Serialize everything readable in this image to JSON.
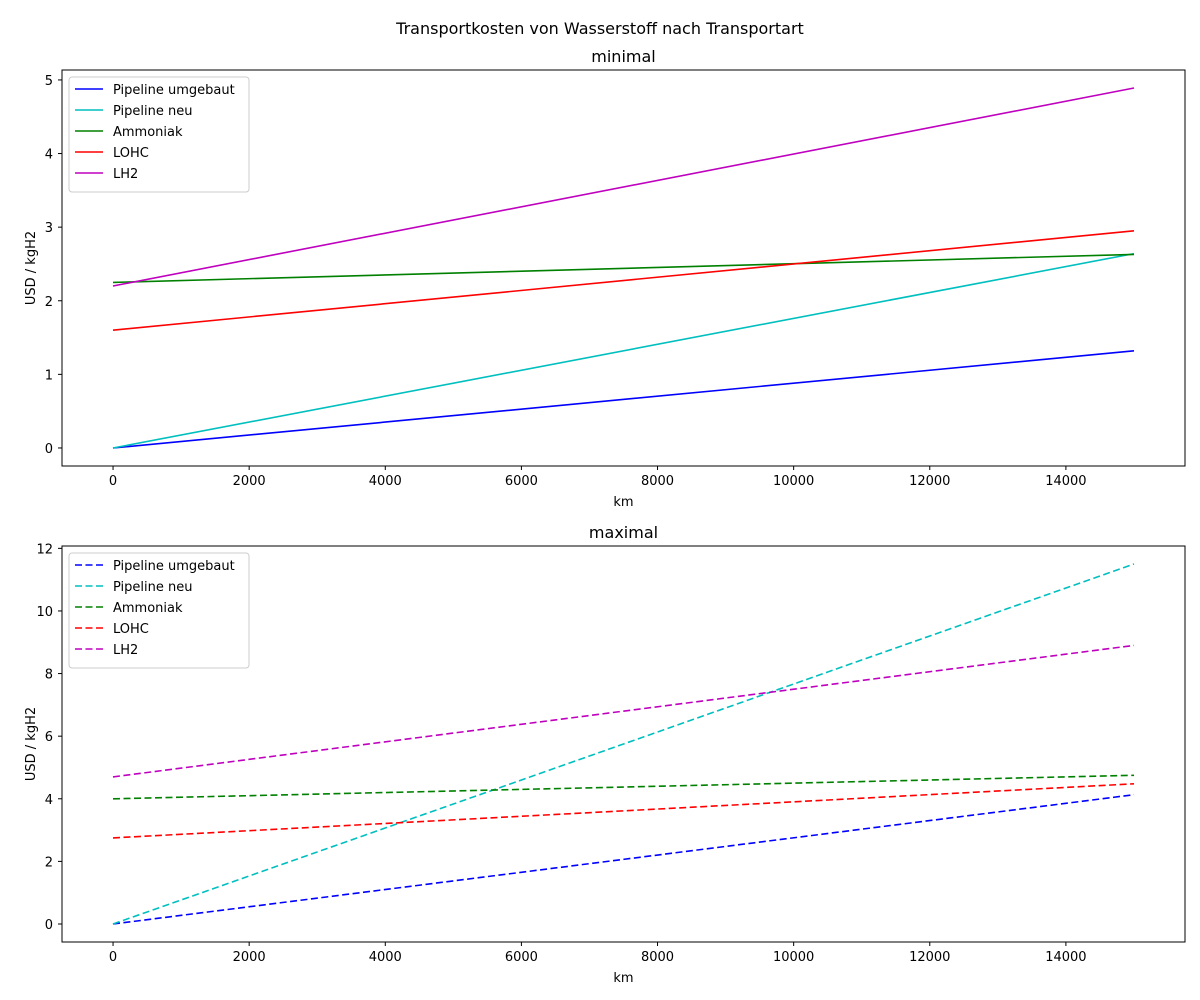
{
  "suptitle": "Transportkosten von Wasserstoff nach Transportart",
  "chart_data": [
    {
      "type": "line",
      "title": "minimal",
      "xlabel": "km",
      "ylabel": "USD / kgH2",
      "xlim": [
        -750,
        15750
      ],
      "ylim": [
        -0.245,
        5.135
      ],
      "xticks": [
        0,
        2000,
        4000,
        6000,
        8000,
        10000,
        12000,
        14000
      ],
      "yticks": [
        0,
        1,
        2,
        3,
        4,
        5
      ],
      "grid": false,
      "legend_position": "upper left",
      "line_style": "solid",
      "x": [
        0,
        15000
      ],
      "series": [
        {
          "name": "Pipeline umgebaut",
          "color": "#0000ff",
          "values": [
            0,
            1.32
          ]
        },
        {
          "name": "Pipeline neu",
          "color": "#00bfbf",
          "values": [
            0,
            2.64
          ]
        },
        {
          "name": "Ammoniak",
          "color": "#008000",
          "values": [
            2.25,
            2.63
          ]
        },
        {
          "name": "LOHC",
          "color": "#ff0000",
          "values": [
            1.6,
            2.95
          ]
        },
        {
          "name": "LH2",
          "color": "#bf00bf",
          "values": [
            2.2,
            4.89
          ]
        }
      ]
    },
    {
      "type": "line",
      "title": "maximal",
      "xlabel": "km",
      "ylabel": "USD / kgH2",
      "xlim": [
        -750,
        15750
      ],
      "ylim": [
        -0.575,
        12.075
      ],
      "xticks": [
        0,
        2000,
        4000,
        6000,
        8000,
        10000,
        12000,
        14000
      ],
      "yticks": [
        0,
        2,
        4,
        6,
        8,
        10,
        12
      ],
      "grid": false,
      "legend_position": "upper left",
      "line_style": "dashed",
      "x": [
        0,
        15000
      ],
      "series": [
        {
          "name": "Pipeline umgebaut",
          "color": "#0000ff",
          "values": [
            0,
            4.13
          ]
        },
        {
          "name": "Pipeline neu",
          "color": "#00bfbf",
          "values": [
            0,
            11.5
          ]
        },
        {
          "name": "Ammoniak",
          "color": "#008000",
          "values": [
            4.0,
            4.75
          ]
        },
        {
          "name": "LOHC",
          "color": "#ff0000",
          "values": [
            2.75,
            4.48
          ]
        },
        {
          "name": "LH2",
          "color": "#bf00bf",
          "values": [
            4.7,
            8.9
          ]
        }
      ]
    }
  ]
}
